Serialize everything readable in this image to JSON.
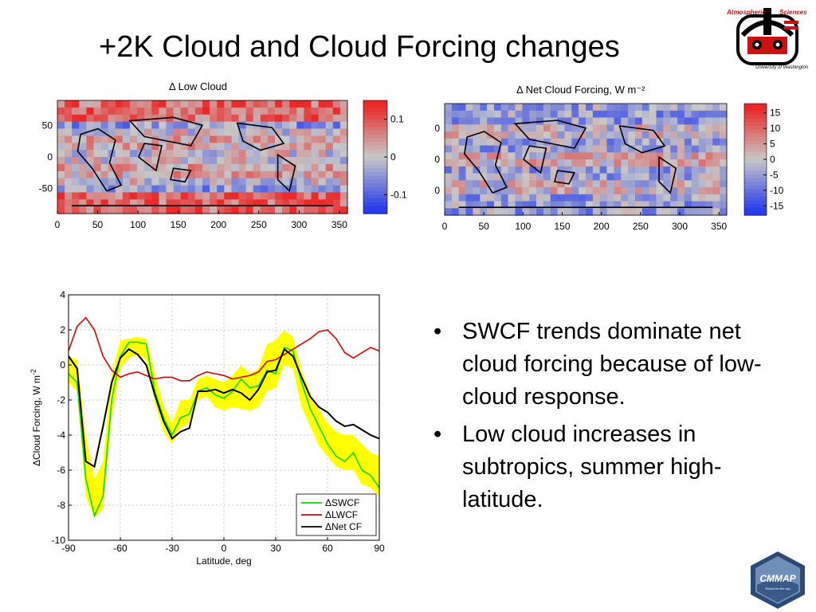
{
  "slide_title": "+2K Cloud and Cloud Forcing changes",
  "bullets": [
    "SWCF trends dominate net cloud forcing because of low-cloud response.",
    "Low cloud increases in subtropics, summer high-latitude."
  ],
  "logos": {
    "top_right": {
      "name": "atmospheric-sciences-uw-logo",
      "text_1": "Atmospheric",
      "text_2": "Sciences",
      "text_3": "University of Washington"
    },
    "bottom_right": {
      "name": "cmmap-logo",
      "text": "CMMAP",
      "subtext": "Reach for the sky"
    }
  },
  "colors": {
    "swcf": "#00e000",
    "lwcf": "#e00000",
    "net": "#000000",
    "band": "#ffff00"
  },
  "chart_data": [
    {
      "type": "heatmap",
      "title": "Δ Low Cloud",
      "xticks": [
        0,
        50,
        100,
        150,
        200,
        250,
        300,
        350
      ],
      "yticks": [
        50,
        0,
        -50
      ],
      "xlim": [
        0,
        360
      ],
      "ylim": [
        -90,
        90
      ],
      "colorbar": {
        "ticks": [
          "0.1",
          "0",
          "-0.1"
        ],
        "range": [
          -0.15,
          0.15
        ],
        "colormap": "blue-white-red"
      }
    },
    {
      "type": "heatmap",
      "title": "Δ Net Cloud Forcing, W m⁻²",
      "xticks": [
        0,
        50,
        100,
        150,
        200,
        250,
        300,
        350
      ],
      "yticks": [
        "0",
        "0",
        "0"
      ],
      "xlim": [
        0,
        360
      ],
      "ylim": [
        -90,
        90
      ],
      "colorbar": {
        "ticks": [
          "15",
          "10",
          "5",
          "0",
          "-5",
          "-10",
          "-15"
        ],
        "range": [
          -18,
          18
        ],
        "colormap": "blue-white-red"
      }
    },
    {
      "type": "line",
      "xlabel": "Latitude, deg",
      "ylabel": "ΔCloud Forcing, W m",
      "ylabel_sup": "-2",
      "xlim": [
        -90,
        90
      ],
      "ylim": [
        -10,
        4
      ],
      "xticks": [
        -90,
        -60,
        -30,
        0,
        30,
        60,
        90
      ],
      "xtick_labels": [
        "-90",
        "-60",
        "-30",
        "0",
        "30",
        "60",
        "90"
      ],
      "yticks": [
        4,
        2,
        0,
        -2,
        -4,
        -6,
        -8,
        -10
      ],
      "grid": true,
      "legend_position": "bottom-right",
      "x": [
        -90,
        -85,
        -80,
        -75,
        -70,
        -65,
        -60,
        -55,
        -50,
        -45,
        -40,
        -35,
        -30,
        -25,
        -20,
        -15,
        -10,
        -5,
        0,
        5,
        10,
        15,
        20,
        25,
        30,
        35,
        40,
        45,
        50,
        55,
        60,
        65,
        70,
        75,
        80,
        85,
        90
      ],
      "series": [
        {
          "name": "ΔSWCF",
          "values": [
            -0.5,
            -1.0,
            -6.5,
            -8.6,
            -7.5,
            -2.0,
            0.5,
            1.3,
            1.3,
            1.2,
            -1.5,
            -3.0,
            -4.0,
            -3.0,
            -2.8,
            -1.5,
            -1.3,
            -1.7,
            -1.9,
            -1.5,
            -0.8,
            -1.3,
            -1.2,
            -0.3,
            -0.5,
            1.0,
            0.8,
            -1.0,
            -2.5,
            -3.5,
            -4.5,
            -5.2,
            -5.5,
            -5.0,
            -6.0,
            -6.3,
            -7.0
          ]
        },
        {
          "name": "ΔLWCF",
          "values": [
            0.8,
            2.2,
            2.7,
            2.0,
            0.5,
            -0.3,
            -0.7,
            -0.5,
            -0.4,
            -0.6,
            -0.8,
            -0.7,
            -0.7,
            -0.9,
            -0.9,
            -0.6,
            -0.4,
            -0.5,
            -0.6,
            -0.8,
            -0.7,
            -0.6,
            -0.4,
            0.2,
            0.3,
            0.6,
            0.9,
            1.2,
            1.5,
            1.9,
            2.0,
            1.5,
            0.7,
            0.4,
            0.7,
            1.0,
            0.8
          ]
        },
        {
          "name": "ΔNet CF",
          "values": [
            0.5,
            -0.2,
            -5.5,
            -5.8,
            -3.5,
            -1.0,
            0.4,
            0.9,
            0.6,
            0.0,
            -1.7,
            -3.2,
            -4.2,
            -3.8,
            -3.6,
            -1.5,
            -1.5,
            -1.4,
            -1.6,
            -1.4,
            -1.6,
            -2.0,
            -1.4,
            -0.4,
            -0.3,
            0.9,
            0.5,
            -0.7,
            -1.8,
            -2.4,
            -2.7,
            -3.2,
            -3.5,
            -3.4,
            -3.7,
            -4.0,
            -4.2
          ]
        }
      ],
      "band": {
        "upper": [
          0.5,
          0.3,
          -4.0,
          -6.5,
          -5.5,
          -0.5,
          1.4,
          1.5,
          1.6,
          1.5,
          -0.5,
          -2.3,
          -3.3,
          -2.0,
          -2.0,
          -0.8,
          -0.6,
          -0.8,
          -1.0,
          -0.6,
          0.0,
          -0.5,
          -0.2,
          1.2,
          1.4,
          2.0,
          1.6,
          -0.3,
          -1.6,
          -2.5,
          -3.3,
          -3.8,
          -4.0,
          -4.0,
          -4.5,
          -5.0,
          -5.2
        ],
        "lower": [
          -1.0,
          -1.5,
          -7.5,
          -8.7,
          -8.2,
          -3.0,
          -0.2,
          0.4,
          0.6,
          0.3,
          -2.2,
          -3.8,
          -4.5,
          -3.6,
          -3.3,
          -2.0,
          -1.8,
          -2.4,
          -2.6,
          -2.4,
          -2.5,
          -2.6,
          -2.4,
          -1.5,
          -1.3,
          0.0,
          -0.2,
          -2.4,
          -3.5,
          -4.6,
          -5.2,
          -5.8,
          -6.0,
          -6.0,
          -6.8,
          -7.0,
          -7.5
        ]
      }
    }
  ]
}
